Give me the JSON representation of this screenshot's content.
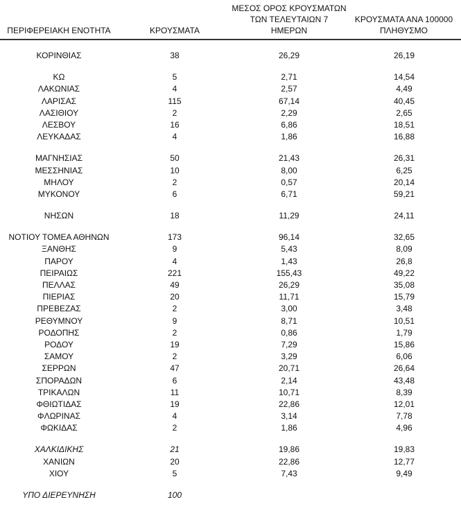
{
  "headers": {
    "region": "ΠΕΡΙΦΕΡΕΙΑΚΗ ΕΝΟΤΗΤΑ",
    "cases": "ΚΡΟΥΣΜΑΤΑ",
    "avg7_line1": "ΜΕΣΟΣ ΟΡΟΣ ΚΡΟΥΣΜΑΤΩΝ",
    "avg7_line2": "ΤΩΝ ΤΕΛΕΥΤΑΙΩΝ 7",
    "avg7_line3": "ΗΜΕΡΩΝ",
    "per100k_line1": "ΚΡΟΥΣΜΑΤΑ ΑΝΑ 100000",
    "per100k_line2": "ΠΛΗΘΥΣΜΟ"
  },
  "groups": [
    {
      "rows": [
        {
          "region": "ΚΟΡΙΝΘΙΑΣ",
          "cases": "38",
          "avg7": "26,29",
          "per100k": "26,19"
        }
      ]
    },
    {
      "rows": [
        {
          "region": "ΚΩ",
          "cases": "5",
          "avg7": "2,71",
          "per100k": "14,54"
        },
        {
          "region": "ΛΑΚΩΝΙΑΣ",
          "cases": "4",
          "avg7": "2,57",
          "per100k": "4,49"
        },
        {
          "region": "ΛΑΡΙΣΑΣ",
          "cases": "115",
          "avg7": "67,14",
          "per100k": "40,45"
        },
        {
          "region": "ΛΑΣΙΘΙΟΥ",
          "cases": "2",
          "avg7": "2,29",
          "per100k": "2,65"
        },
        {
          "region": "ΛΕΣΒΟΥ",
          "cases": "16",
          "avg7": "6,86",
          "per100k": "18,51"
        },
        {
          "region": "ΛΕΥΚΑΔΑΣ",
          "cases": "4",
          "avg7": "1,86",
          "per100k": "16,88"
        }
      ]
    },
    {
      "rows": [
        {
          "region": "ΜΑΓΝΗΣΙΑΣ",
          "cases": "50",
          "avg7": "21,43",
          "per100k": "26,31"
        },
        {
          "region": "ΜΕΣΣΗΝΙΑΣ",
          "cases": "10",
          "avg7": "8,00",
          "per100k": "6,25"
        },
        {
          "region": "ΜΗΛΟΥ",
          "cases": "2",
          "avg7": "0,57",
          "per100k": "20,14"
        },
        {
          "region": "ΜΥΚΟΝΟΥ",
          "cases": "6",
          "avg7": "6,71",
          "per100k": "59,21"
        }
      ]
    },
    {
      "rows": [
        {
          "region": "ΝΗΣΩΝ",
          "cases": "18",
          "avg7": "11,29",
          "per100k": "24,11"
        }
      ]
    },
    {
      "rows": [
        {
          "region": "ΝΟΤΙΟΥ ΤΟΜΕΑ ΑΘΗΝΩΝ",
          "cases": "173",
          "avg7": "96,14",
          "per100k": "32,65"
        },
        {
          "region": "ΞΑΝΘΗΣ",
          "cases": "9",
          "avg7": "5,43",
          "per100k": "8,09"
        },
        {
          "region": "ΠΑΡΟΥ",
          "cases": "4",
          "avg7": "1,43",
          "per100k": "26,8"
        },
        {
          "region": "ΠΕΙΡΑΙΩΣ",
          "cases": "221",
          "avg7": "155,43",
          "per100k": "49,22"
        },
        {
          "region": "ΠΕΛΛΑΣ",
          "cases": "49",
          "avg7": "26,29",
          "per100k": "35,08"
        },
        {
          "region": "ΠΙΕΡΙΑΣ",
          "cases": "20",
          "avg7": "11,71",
          "per100k": "15,79"
        },
        {
          "region": "ΠΡΕΒΕΖΑΣ",
          "cases": "2",
          "avg7": "3,00",
          "per100k": "3,48"
        },
        {
          "region": "ΡΕΘΥΜΝΟΥ",
          "cases": "9",
          "avg7": "8,71",
          "per100k": "10,51"
        },
        {
          "region": "ΡΟΔΟΠΗΣ",
          "cases": "2",
          "avg7": "0,86",
          "per100k": "1,79"
        },
        {
          "region": "ΡΟΔΟΥ",
          "cases": "19",
          "avg7": "7,29",
          "per100k": "15,86"
        },
        {
          "region": "ΣΑΜΟΥ",
          "cases": "2",
          "avg7": "3,29",
          "per100k": "6,06"
        },
        {
          "region": "ΣΕΡΡΩΝ",
          "cases": "47",
          "avg7": "20,71",
          "per100k": "26,64"
        },
        {
          "region": "ΣΠΟΡΑΔΩΝ",
          "cases": "6",
          "avg7": "2,14",
          "per100k": "43,48"
        },
        {
          "region": "ΤΡΙΚΑΛΩΝ",
          "cases": "11",
          "avg7": "10,71",
          "per100k": "8,39"
        },
        {
          "region": "ΦΘΙΩΤΙΔΑΣ",
          "cases": "19",
          "avg7": "22,86",
          "per100k": "12,01"
        },
        {
          "region": "ΦΛΩΡΙΝΑΣ",
          "cases": "4",
          "avg7": "3,14",
          "per100k": "7,78"
        },
        {
          "region": "ΦΩΚΙΔΑΣ",
          "cases": "2",
          "avg7": "1,86",
          "per100k": "4,96"
        }
      ]
    },
    {
      "rows": [
        {
          "region": "ΧΑΛΚΙΔΙΚΗΣ",
          "cases": "21",
          "avg7": "19,86",
          "per100k": "19,83",
          "italic": true
        },
        {
          "region": "ΧΑΝΙΩΝ",
          "cases": "20",
          "avg7": "22,86",
          "per100k": "12,77"
        },
        {
          "region": "ΧΙΟΥ",
          "cases": "5",
          "avg7": "7,43",
          "per100k": "9,49"
        }
      ]
    },
    {
      "rows": [
        {
          "region": "ΥΠΟ ΔΙΕΡΕΥΝΗΣΗ",
          "cases": "100",
          "avg7": "",
          "per100k": "",
          "italic": true
        }
      ]
    }
  ]
}
